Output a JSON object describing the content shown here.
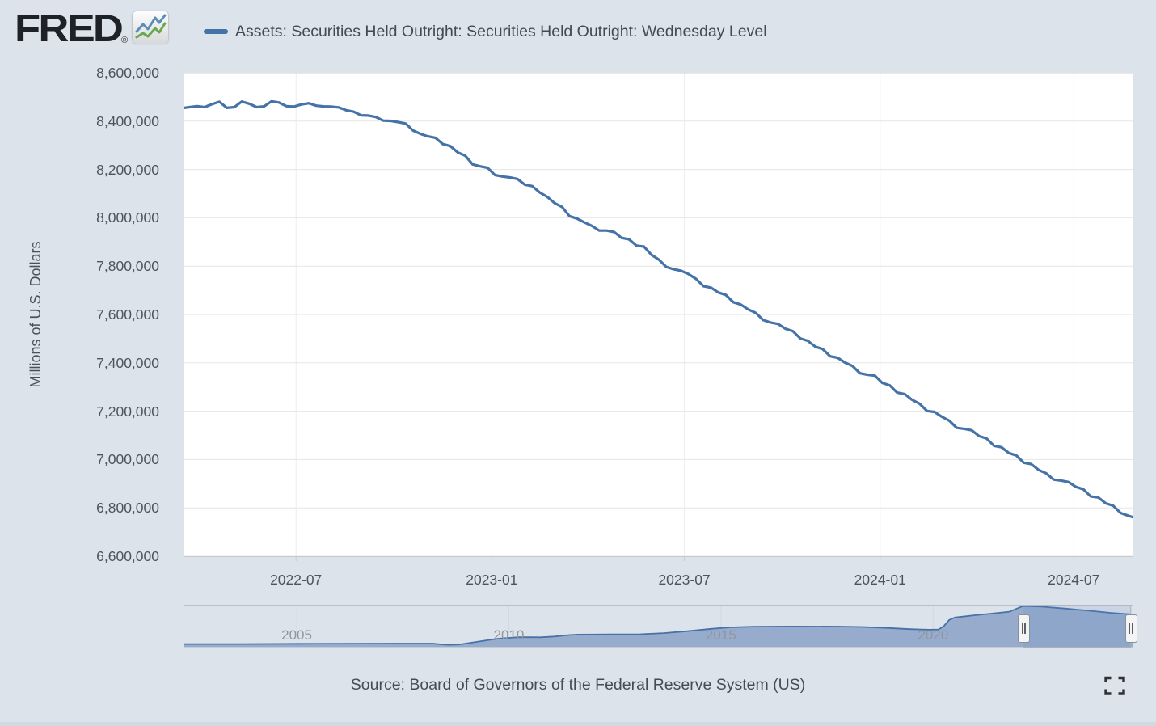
{
  "header": {
    "logo_text": "FRED",
    "registered_mark": "®",
    "logo_icon": "line-chart-icon",
    "logo_icon_colors": {
      "blue_line": "#5b8db8",
      "green_line": "#6aa84f"
    }
  },
  "colors": {
    "page_background": "#dde3eb",
    "plot_background": "#ffffff",
    "series_line": "#4572a7",
    "gridline": "#e6e6e6",
    "axis_line": "#c9c9c9",
    "navigator_fill": "#97accd",
    "navigator_selection_border": "#a9b0ba",
    "text_dark": "#434a54",
    "text_axis": "#4c545e",
    "text_nav_year": "#90969e"
  },
  "chart_data": {
    "type": "line",
    "title": "Assets: Securities Held Outright: Securities Held Outright: Wednesday Level",
    "ylabel": "Millions of U.S. Dollars",
    "xlabel": "",
    "x_range": [
      "2022-03-18",
      "2024-08-26"
    ],
    "ylim": [
      6600000,
      8600000
    ],
    "grid": true,
    "legend_position": "top",
    "x_ticks": [
      {
        "label": "2022-07",
        "date": "2022-07-01"
      },
      {
        "label": "2023-01",
        "date": "2023-01-01"
      },
      {
        "label": "2023-07",
        "date": "2023-07-01"
      },
      {
        "label": "2024-01",
        "date": "2024-01-01"
      },
      {
        "label": "2024-07",
        "date": "2024-07-01"
      }
    ],
    "y_ticks": [
      {
        "label": "8,600,000",
        "value": 8600000
      },
      {
        "label": "8,400,000",
        "value": 8400000
      },
      {
        "label": "8,200,000",
        "value": 8200000
      },
      {
        "label": "8,000,000",
        "value": 8000000
      },
      {
        "label": "7,800,000",
        "value": 7800000
      },
      {
        "label": "7,600,000",
        "value": 7600000
      },
      {
        "label": "7,400,000",
        "value": 7400000
      },
      {
        "label": "7,200,000",
        "value": 7200000
      },
      {
        "label": "7,000,000",
        "value": 7000000
      },
      {
        "label": "6,800,000",
        "value": 6800000
      },
      {
        "label": "6,600,000",
        "value": 6600000
      }
    ],
    "series": [
      {
        "name": "Assets: Securities Held Outright: Securities Held Outright: Wednesday Level",
        "color": "#4572a7",
        "frequency": "weekly-wednesday",
        "units": "Millions of U.S. Dollars",
        "points": [
          [
            "2022-03-18",
            8455000
          ],
          [
            "2022-03-23",
            8458000
          ],
          [
            "2022-03-30",
            8462000
          ],
          [
            "2022-04-06",
            8458000
          ],
          [
            "2022-04-13",
            8470000
          ],
          [
            "2022-04-20",
            8480000
          ],
          [
            "2022-04-27",
            8455000
          ],
          [
            "2022-05-04",
            8458000
          ],
          [
            "2022-05-11",
            8481000
          ],
          [
            "2022-05-18",
            8472000
          ],
          [
            "2022-05-25",
            8458000
          ],
          [
            "2022-06-01",
            8461000
          ],
          [
            "2022-06-08",
            8482000
          ],
          [
            "2022-06-15",
            8477000
          ],
          [
            "2022-06-22",
            8462000
          ],
          [
            "2022-06-29",
            8460000
          ],
          [
            "2022-07-06",
            8469000
          ],
          [
            "2022-07-13",
            8474000
          ],
          [
            "2022-07-20",
            8464000
          ],
          [
            "2022-07-27",
            8461000
          ],
          [
            "2022-08-03",
            8460000
          ],
          [
            "2022-08-10",
            8457000
          ],
          [
            "2022-08-17",
            8445000
          ],
          [
            "2022-08-24",
            8439000
          ],
          [
            "2022-08-31",
            8424000
          ],
          [
            "2022-09-07",
            8423000
          ],
          [
            "2022-09-14",
            8417000
          ],
          [
            "2022-09-21",
            8402000
          ],
          [
            "2022-09-28",
            8401000
          ],
          [
            "2022-10-05",
            8396000
          ],
          [
            "2022-10-12",
            8390000
          ],
          [
            "2022-10-19",
            8361000
          ],
          [
            "2022-10-26",
            8347000
          ],
          [
            "2022-11-02",
            8337000
          ],
          [
            "2022-11-09",
            8331000
          ],
          [
            "2022-11-16",
            8305000
          ],
          [
            "2022-11-23",
            8297000
          ],
          [
            "2022-11-30",
            8271000
          ],
          [
            "2022-12-07",
            8257000
          ],
          [
            "2022-12-14",
            8221000
          ],
          [
            "2022-12-21",
            8213000
          ],
          [
            "2022-12-28",
            8207000
          ],
          [
            "2023-01-04",
            8177000
          ],
          [
            "2023-01-11",
            8171000
          ],
          [
            "2023-01-18",
            8167000
          ],
          [
            "2023-01-25",
            8161000
          ],
          [
            "2023-02-01",
            8137000
          ],
          [
            "2023-02-08",
            8131000
          ],
          [
            "2023-02-15",
            8105000
          ],
          [
            "2023-02-22",
            8087000
          ],
          [
            "2023-03-01",
            8061000
          ],
          [
            "2023-03-08",
            8045000
          ],
          [
            "2023-03-15",
            8007000
          ],
          [
            "2023-03-22",
            7997000
          ],
          [
            "2023-03-29",
            7981000
          ],
          [
            "2023-04-05",
            7967000
          ],
          [
            "2023-04-12",
            7947000
          ],
          [
            "2023-04-19",
            7947000
          ],
          [
            "2023-04-26",
            7941000
          ],
          [
            "2023-05-03",
            7917000
          ],
          [
            "2023-05-10",
            7911000
          ],
          [
            "2023-05-17",
            7885000
          ],
          [
            "2023-05-24",
            7881000
          ],
          [
            "2023-05-31",
            7847000
          ],
          [
            "2023-06-07",
            7827000
          ],
          [
            "2023-06-14",
            7797000
          ],
          [
            "2023-06-21",
            7787000
          ],
          [
            "2023-06-28",
            7781000
          ],
          [
            "2023-07-05",
            7767000
          ],
          [
            "2023-07-12",
            7747000
          ],
          [
            "2023-07-19",
            7717000
          ],
          [
            "2023-07-26",
            7711000
          ],
          [
            "2023-08-02",
            7691000
          ],
          [
            "2023-08-09",
            7681000
          ],
          [
            "2023-08-16",
            7651000
          ],
          [
            "2023-08-23",
            7641000
          ],
          [
            "2023-08-30",
            7621000
          ],
          [
            "2023-09-06",
            7607000
          ],
          [
            "2023-09-13",
            7577000
          ],
          [
            "2023-09-20",
            7567000
          ],
          [
            "2023-09-27",
            7561000
          ],
          [
            "2023-10-04",
            7541000
          ],
          [
            "2023-10-11",
            7531000
          ],
          [
            "2023-10-18",
            7501000
          ],
          [
            "2023-10-25",
            7491000
          ],
          [
            "2023-11-01",
            7467000
          ],
          [
            "2023-11-08",
            7457000
          ],
          [
            "2023-11-15",
            7427000
          ],
          [
            "2023-11-22",
            7421000
          ],
          [
            "2023-11-29",
            7401000
          ],
          [
            "2023-12-06",
            7387000
          ],
          [
            "2023-12-13",
            7357000
          ],
          [
            "2023-12-20",
            7351000
          ],
          [
            "2023-12-27",
            7347000
          ],
          [
            "2024-01-03",
            7317000
          ],
          [
            "2024-01-10",
            7307000
          ],
          [
            "2024-01-17",
            7277000
          ],
          [
            "2024-01-24",
            7271000
          ],
          [
            "2024-01-31",
            7247000
          ],
          [
            "2024-02-07",
            7231000
          ],
          [
            "2024-02-14",
            7201000
          ],
          [
            "2024-02-21",
            7197000
          ],
          [
            "2024-02-28",
            7177000
          ],
          [
            "2024-03-06",
            7161000
          ],
          [
            "2024-03-13",
            7131000
          ],
          [
            "2024-03-20",
            7127000
          ],
          [
            "2024-03-27",
            7121000
          ],
          [
            "2024-04-03",
            7097000
          ],
          [
            "2024-04-10",
            7087000
          ],
          [
            "2024-04-17",
            7057000
          ],
          [
            "2024-04-24",
            7051000
          ],
          [
            "2024-05-01",
            7027000
          ],
          [
            "2024-05-08",
            7017000
          ],
          [
            "2024-05-15",
            6987000
          ],
          [
            "2024-05-22",
            6981000
          ],
          [
            "2024-05-29",
            6957000
          ],
          [
            "2024-06-05",
            6943000
          ],
          [
            "2024-06-12",
            6917000
          ],
          [
            "2024-06-19",
            6913000
          ],
          [
            "2024-06-26",
            6907000
          ],
          [
            "2024-07-03",
            6887000
          ],
          [
            "2024-07-10",
            6877000
          ],
          [
            "2024-07-17",
            6847000
          ],
          [
            "2024-07-24",
            6843000
          ],
          [
            "2024-07-31",
            6819000
          ],
          [
            "2024-08-07",
            6809000
          ],
          [
            "2024-08-14",
            6779000
          ],
          [
            "2024-08-21",
            6768000
          ],
          [
            "2024-08-26",
            6761000
          ]
        ]
      }
    ],
    "navigator": {
      "type": "area",
      "year_range": [
        2002.35,
        2024.72
      ],
      "ymax": 8480000,
      "year_ticks": [
        {
          "label": "2005",
          "year": 2005
        },
        {
          "label": "2010",
          "year": 2010
        },
        {
          "label": "2015",
          "year": 2015
        },
        {
          "label": "2020",
          "year": 2020
        }
      ],
      "selection_years": [
        2022.12,
        2024.66
      ],
      "points": [
        [
          2002.35,
          650000
        ],
        [
          2003.69,
          655000
        ],
        [
          2005.08,
          700000
        ],
        [
          2006.38,
          725000
        ],
        [
          2007.5,
          755000
        ],
        [
          2008.21,
          745000
        ],
        [
          2008.43,
          560000
        ],
        [
          2008.59,
          490000
        ],
        [
          2008.84,
          560000
        ],
        [
          2009.28,
          1150000
        ],
        [
          2009.73,
          1750000
        ],
        [
          2010.22,
          2040000
        ],
        [
          2010.52,
          2060000
        ],
        [
          2010.74,
          2030000
        ],
        [
          2011.07,
          2200000
        ],
        [
          2011.41,
          2500000
        ],
        [
          2011.63,
          2600000
        ],
        [
          2012.42,
          2630000
        ],
        [
          2013.09,
          2660000
        ],
        [
          2013.65,
          2900000
        ],
        [
          2014.21,
          3300000
        ],
        [
          2014.77,
          3780000
        ],
        [
          2015.21,
          4080000
        ],
        [
          2015.77,
          4230000
        ],
        [
          2016.67,
          4250000
        ],
        [
          2017.79,
          4240000
        ],
        [
          2018.34,
          4150000
        ],
        [
          2018.9,
          3950000
        ],
        [
          2019.46,
          3700000
        ],
        [
          2019.91,
          3590000
        ],
        [
          2020.13,
          3640000
        ],
        [
          2020.25,
          4300000
        ],
        [
          2020.38,
          5600000
        ],
        [
          2020.51,
          6100000
        ],
        [
          2020.92,
          6500000
        ],
        [
          2021.48,
          7000000
        ],
        [
          2021.8,
          7300000
        ],
        [
          2022.12,
          8470000
        ],
        [
          2022.55,
          8330000
        ],
        [
          2023.1,
          7950000
        ],
        [
          2023.7,
          7480000
        ],
        [
          2024.2,
          7050000
        ],
        [
          2024.66,
          6760000
        ],
        [
          2024.72,
          6750000
        ]
      ]
    }
  },
  "footer": {
    "source_text": "Source: Board of Governors of the Federal Reserve System (US)",
    "fullscreen_icon": "fullscreen-expand-icon"
  }
}
